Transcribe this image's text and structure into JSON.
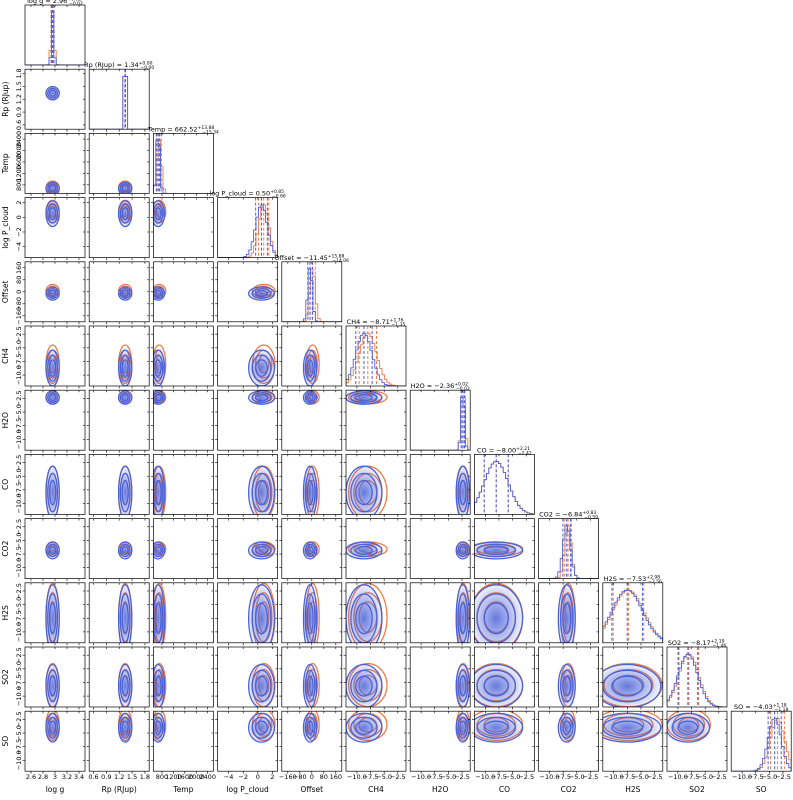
{
  "chart_data": {
    "type": "corner",
    "colors": [
      "#4a62d8",
      "#f07a4a"
    ],
    "params": [
      {
        "label": "log g",
        "title": "log g = 2.96",
        "plus": "+0.02",
        "minus": "−0.02",
        "lim": [
          2.5,
          3.5
        ],
        "ticks": [
          2.6,
          2.8,
          3.0,
          3.2,
          3.4
        ],
        "center": [
          2.96,
          2.96
        ],
        "width": [
          0.02,
          0.025
        ]
      },
      {
        "label": "Rp (RJup)",
        "title": "Rp (RJup) = 1.34",
        "plus": "+0.00",
        "minus": "−0.00",
        "lim": [
          0.5,
          1.9
        ],
        "ticks": [
          0.6,
          0.9,
          1.2,
          1.5,
          1.8
        ],
        "center": [
          1.34,
          1.34
        ],
        "width": [
          0.005,
          0.006
        ]
      },
      {
        "label": "Temp",
        "title": "Temp = 662.52",
        "plus": "+13.88",
        "minus": "−15.34",
        "lim": [
          500,
          2600
        ],
        "ticks": [
          800,
          1200,
          1600,
          2000,
          2400
        ],
        "center": [
          662.52,
          700
        ],
        "width": [
          60,
          80
        ]
      },
      {
        "label": "log P_cloud",
        "title": "log P_cloud = 0.50",
        "plus": "+0.85",
        "minus": "−0.66",
        "lim": [
          -5.5,
          2.7
        ],
        "ticks": [
          {
            "value": -4,
            "label": "−4"
          },
          {
            "value": -2,
            "label": "−2"
          },
          0,
          2
        ],
        "center": [
          0.5,
          0.8
        ],
        "width": [
          0.8,
          0.7
        ]
      },
      {
        "label": "Offset",
        "title": "Offset = −11.45",
        "plus": "+15.88",
        "minus": "−14.06",
        "lim": [
          -200,
          200
        ],
        "ticks": [
          {
            "value": -160,
            "label": "−160"
          },
          {
            "value": -80,
            "label": "−80"
          },
          0,
          80,
          160
        ],
        "center": [
          -11.45,
          5
        ],
        "width": [
          15,
          18
        ]
      },
      {
        "label": "CH4",
        "title": "CH4 = −8.71",
        "plus": "+1.76",
        "minus": "−1.35",
        "lim": [
          -12,
          -1
        ],
        "ticks": [
          {
            "value": -10,
            "label": "−10.0"
          },
          {
            "value": -7.5,
            "label": "−7.5"
          },
          {
            "value": -5,
            "label": "−5.0"
          },
          {
            "value": -2.5,
            "label": "−2.5"
          }
        ],
        "center": [
          -8.71,
          -8.0
        ],
        "width": [
          1.5,
          1.6
        ]
      },
      {
        "label": "H2O",
        "title": "H2O = −2.36",
        "plus": "+0.02",
        "minus": "−0.02",
        "lim": [
          -12,
          -1
        ],
        "ticks": [
          {
            "value": -10,
            "label": "−10.0"
          },
          {
            "value": -7.5,
            "label": "−7.5"
          },
          {
            "value": -5,
            "label": "−5.0"
          },
          {
            "value": -2.5,
            "label": "−2.5"
          }
        ],
        "center": [
          -2.36,
          -2.3
        ],
        "width": [
          0.3,
          0.35
        ]
      },
      {
        "label": "CO",
        "title": "CO = −8.00",
        "plus": "+2.21",
        "minus": "−2.42",
        "lim": [
          -12,
          -1
        ],
        "ticks": [
          {
            "value": -10,
            "label": "−10.0"
          },
          {
            "value": -7.5,
            "label": "−7.5"
          },
          {
            "value": -5,
            "label": "−5.0"
          },
          {
            "value": -2.5,
            "label": "−2.5"
          }
        ],
        "center": [
          -8.0,
          -8.0
        ],
        "width": [
          2.2,
          2.2
        ]
      },
      {
        "label": "CO2",
        "title": "CO2 = −6.84",
        "plus": "+0.83",
        "minus": "−0.59",
        "lim": [
          -12,
          -1
        ],
        "ticks": [
          {
            "value": -10,
            "label": "−10.0"
          },
          {
            "value": -7.5,
            "label": "−7.5"
          },
          {
            "value": -5,
            "label": "−5.0"
          },
          {
            "value": -2.5,
            "label": "−2.5"
          }
        ],
        "center": [
          -6.84,
          -6.6
        ],
        "width": [
          0.7,
          0.6
        ]
      },
      {
        "label": "H2S",
        "title": "H2S = −7.53",
        "plus": "+2.98",
        "minus": "−2.56",
        "lim": [
          -12,
          -1
        ],
        "ticks": [
          {
            "value": -10,
            "label": "−10.0"
          },
          {
            "value": -7.5,
            "label": "−7.5"
          },
          {
            "value": -5,
            "label": "−5.0"
          },
          {
            "value": -2.5,
            "label": "−2.5"
          }
        ],
        "center": [
          -7.53,
          -7.3
        ],
        "width": [
          2.8,
          2.8
        ]
      },
      {
        "label": "SO2",
        "title": "SO2 = −8.17",
        "plus": "+2.19",
        "minus": "−1.46",
        "lim": [
          -12,
          -1
        ],
        "ticks": [
          {
            "value": -10,
            "label": "−10.0"
          },
          {
            "value": -7.5,
            "label": "−7.5"
          },
          {
            "value": -5,
            "label": "−5.0"
          },
          {
            "value": -2.5,
            "label": "−2.5"
          }
        ],
        "center": [
          -8.17,
          -8.0
        ],
        "width": [
          1.8,
          1.8
        ]
      },
      {
        "label": "SO",
        "title": "SO = −4.03",
        "plus": "+1.18",
        "minus": "−1.18",
        "lim": [
          -12,
          -1
        ],
        "ticks": [
          {
            "value": -10,
            "label": "−10.0"
          },
          {
            "value": -7.5,
            "label": "−7.5"
          },
          {
            "value": -5,
            "label": "−5.0"
          },
          {
            "value": -2.5,
            "label": "−2.5"
          }
        ],
        "center": [
          -4.03,
          -3.5
        ],
        "width": [
          1.2,
          1.3
        ]
      }
    ]
  }
}
